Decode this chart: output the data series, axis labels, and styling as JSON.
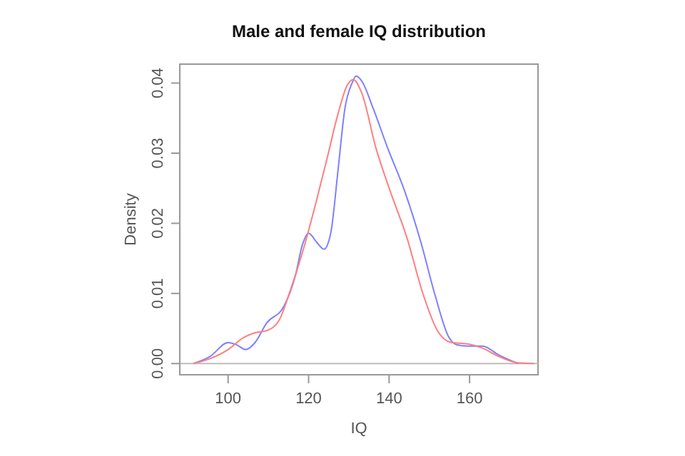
{
  "chart_data": {
    "type": "line",
    "title": "Male and female IQ distribution",
    "xlabel": "IQ",
    "ylabel": "Density",
    "xlim": [
      88,
      177
    ],
    "ylim": [
      -0.0016,
      0.0427
    ],
    "xticks": [
      100,
      120,
      140,
      160
    ],
    "yticks": [
      {
        "value": 0,
        "label": "0.00"
      },
      {
        "value": 0.01,
        "label": "0.01"
      },
      {
        "value": 0.02,
        "label": "0.02"
      },
      {
        "value": 0.03,
        "label": "0.03"
      },
      {
        "value": 0.04,
        "label": "0.04"
      }
    ],
    "grid": false,
    "legend": false,
    "marker": "none",
    "line_style": "solid",
    "ref_lines": [
      {
        "axis": "y",
        "value": 0,
        "color": "#bebebe"
      }
    ],
    "series": [
      {
        "color": "#7f7fff",
        "x": [
          91.4,
          95.5,
          100,
          102,
          104.4,
          106.7,
          109.6,
          113.8,
          116.7,
          118.5,
          120,
          122,
          123.8,
          125.5,
          127.3,
          129,
          130.8,
          131.8,
          133.2,
          136.1,
          139.6,
          143.8,
          147.9,
          151.4,
          154.9,
          156.7,
          159.6,
          163.2,
          167.3,
          172
        ],
        "values": [
          0,
          0.001,
          0.003,
          0.0027,
          0.002,
          0.003,
          0.0058,
          0.0081,
          0.0125,
          0.017,
          0.0186,
          0.0173,
          0.0163,
          0.0186,
          0.0275,
          0.0363,
          0.04,
          0.041,
          0.0403,
          0.0363,
          0.0308,
          0.0247,
          0.0173,
          0.0098,
          0.0037,
          0.0027,
          0.0025,
          0.0025,
          0.0012,
          0
        ]
      },
      {
        "color": "#ff7f7f",
        "x": [
          91.4,
          95.5,
          100,
          103.8,
          106.7,
          109.6,
          112.6,
          115.5,
          118.5,
          121.4,
          124.4,
          127.3,
          129.6,
          131.1,
          133.2,
          136.7,
          140.2,
          144.4,
          148.5,
          152,
          155.5,
          159.6,
          163.2,
          167.3,
          172,
          176
        ],
        "values": [
          0,
          0.0007,
          0.002,
          0.0037,
          0.0044,
          0.0047,
          0.0061,
          0.0105,
          0.0159,
          0.022,
          0.0288,
          0.0356,
          0.0397,
          0.0405,
          0.0386,
          0.0308,
          0.0247,
          0.018,
          0.0098,
          0.0047,
          0.003,
          0.0028,
          0.0022,
          0.001,
          0.0001,
          0
        ]
      }
    ]
  }
}
